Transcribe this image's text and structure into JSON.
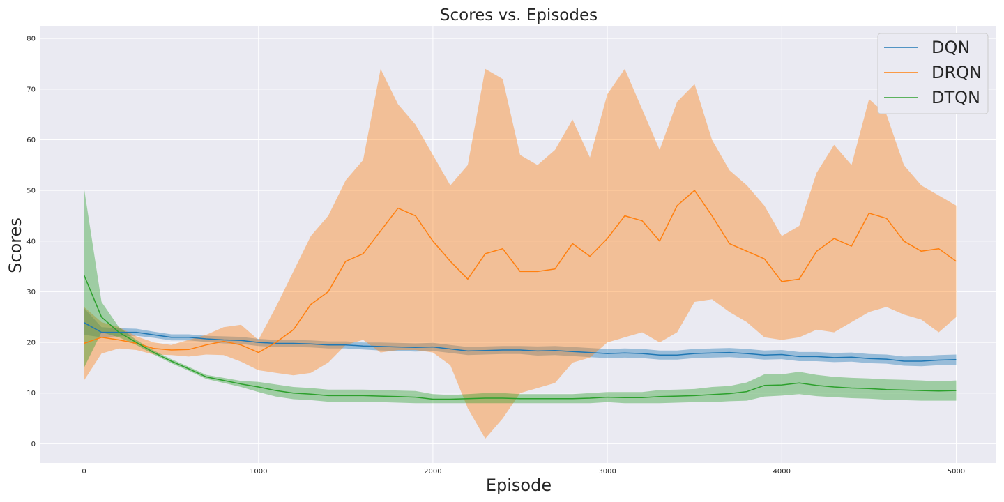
{
  "chart_data": {
    "type": "line",
    "title": "Scores vs. Episodes",
    "xlabel": "Episode",
    "ylabel": "Scores",
    "xlim": [
      -250,
      5230
    ],
    "ylim": [
      -3.8,
      82.5
    ],
    "xticks": [
      0,
      1000,
      2000,
      3000,
      4000,
      5000
    ],
    "yticks": [
      0,
      10,
      20,
      30,
      40,
      50,
      60,
      70,
      80
    ],
    "grid": true,
    "legend_position": "top-right",
    "x": [
      0,
      100,
      200,
      300,
      400,
      500,
      600,
      700,
      800,
      900,
      1000,
      1100,
      1200,
      1300,
      1400,
      1500,
      1600,
      1700,
      1800,
      1900,
      2000,
      2100,
      2200,
      2300,
      2400,
      2500,
      2600,
      2700,
      2800,
      2900,
      3000,
      3100,
      3200,
      3300,
      3400,
      3500,
      3600,
      3700,
      3800,
      3900,
      4000,
      4100,
      4200,
      4300,
      4400,
      4500,
      4600,
      4700,
      4800,
      4900,
      5000
    ],
    "series": [
      {
        "name": "DQN",
        "color": "#1f77b4",
        "values": [
          23.9,
          22.0,
          22.0,
          22.0,
          21.5,
          21.0,
          21.0,
          20.7,
          20.5,
          20.4,
          20.0,
          19.8,
          19.8,
          19.7,
          19.5,
          19.5,
          19.3,
          19.2,
          19.1,
          19.0,
          19.1,
          18.7,
          18.3,
          18.4,
          18.5,
          18.5,
          18.3,
          18.4,
          18.2,
          18.0,
          17.8,
          17.9,
          17.8,
          17.5,
          17.5,
          17.8,
          17.9,
          18.0,
          17.8,
          17.5,
          17.6,
          17.2,
          17.2,
          17.0,
          17.1,
          16.8,
          16.7,
          16.3,
          16.3,
          16.5,
          16.6
        ],
        "lower": [
          21.5,
          21.0,
          21.2,
          21.3,
          20.9,
          20.4,
          20.4,
          20.1,
          19.8,
          19.7,
          19.3,
          19.1,
          19.1,
          19.0,
          18.8,
          18.8,
          18.6,
          18.4,
          18.3,
          18.2,
          18.3,
          17.9,
          17.5,
          17.6,
          17.7,
          17.7,
          17.4,
          17.5,
          17.3,
          17.1,
          16.9,
          17.0,
          16.9,
          16.6,
          16.6,
          16.9,
          17.0,
          17.1,
          16.9,
          16.6,
          16.7,
          16.3,
          16.3,
          16.1,
          16.2,
          15.9,
          15.8,
          15.4,
          15.3,
          15.5,
          15.6
        ],
        "upper": [
          26.8,
          23.0,
          22.8,
          22.7,
          22.1,
          21.6,
          21.6,
          21.3,
          21.2,
          21.1,
          20.7,
          20.5,
          20.5,
          20.4,
          20.2,
          20.2,
          20.0,
          20.0,
          19.9,
          19.8,
          19.9,
          19.5,
          19.1,
          19.2,
          19.3,
          19.3,
          19.2,
          19.3,
          19.1,
          18.9,
          18.7,
          18.8,
          18.7,
          18.4,
          18.4,
          18.7,
          18.8,
          18.9,
          18.7,
          18.4,
          18.5,
          18.1,
          18.1,
          17.9,
          18.0,
          17.7,
          17.6,
          17.2,
          17.3,
          17.5,
          17.6
        ]
      },
      {
        "name": "DRQN",
        "color": "#ff7f0e",
        "values": [
          19.8,
          21.0,
          20.5,
          19.8,
          18.8,
          18.5,
          18.6,
          19.5,
          20.2,
          19.5,
          18.0,
          20.0,
          22.5,
          27.5,
          30.0,
          36.0,
          37.5,
          42.0,
          46.5,
          45.0,
          40.0,
          36.0,
          32.5,
          37.5,
          38.5,
          34.0,
          34.0,
          34.5,
          39.5,
          37.0,
          40.5,
          45.0,
          44.0,
          40.0,
          47.0,
          50.0,
          45.0,
          39.5,
          38.0,
          36.5,
          32.0,
          32.5,
          38.0,
          40.5,
          39.0,
          45.5,
          44.5,
          40.0,
          38.0,
          38.5,
          36.0
        ],
        "lower": [
          12.5,
          17.8,
          18.8,
          18.5,
          17.6,
          17.5,
          17.2,
          17.6,
          17.5,
          16.2,
          14.5,
          14.0,
          13.5,
          14.0,
          16.0,
          19.5,
          20.5,
          18.0,
          18.5,
          18.5,
          18.0,
          15.5,
          7.0,
          1.0,
          5.0,
          10.0,
          11.0,
          12.0,
          16.0,
          17.0,
          20.0,
          21.0,
          22.0,
          20.0,
          22.0,
          28.0,
          28.5,
          26.0,
          24.0,
          21.0,
          20.5,
          21.0,
          22.5,
          22.0,
          24.0,
          26.0,
          27.0,
          25.5,
          24.5,
          22.0,
          25.0
        ],
        "upper": [
          27.0,
          24.0,
          23.0,
          21.2,
          20.0,
          19.5,
          20.5,
          21.5,
          23.0,
          23.5,
          20.5,
          27.0,
          34.0,
          41.0,
          45.0,
          52.0,
          56.0,
          74.0,
          67.0,
          63.0,
          57.0,
          51.0,
          55.0,
          74.0,
          72.0,
          57.0,
          55.0,
          58.0,
          64.0,
          56.5,
          69.0,
          74.0,
          66.0,
          58.0,
          67.5,
          71.0,
          60.0,
          54.0,
          51.0,
          47.0,
          41.0,
          43.0,
          53.5,
          59.0,
          55.0,
          68.0,
          65.0,
          55.0,
          51.0,
          49.0,
          47.0
        ]
      },
      {
        "name": "DTQN",
        "color": "#2ca02c",
        "values": [
          33.3,
          25.0,
          22.0,
          20.0,
          18.0,
          16.3,
          14.8,
          13.2,
          12.5,
          11.8,
          11.2,
          10.5,
          10.0,
          9.8,
          9.5,
          9.5,
          9.5,
          9.4,
          9.3,
          9.2,
          8.8,
          8.8,
          8.9,
          9.0,
          9.0,
          8.9,
          8.9,
          8.9,
          8.9,
          9.0,
          9.2,
          9.1,
          9.1,
          9.3,
          9.4,
          9.5,
          9.7,
          9.9,
          10.3,
          11.5,
          11.6,
          12.0,
          11.5,
          11.2,
          11.0,
          10.9,
          10.7,
          10.6,
          10.5,
          10.4,
          10.5
        ],
        "lower": [
          15.0,
          22.0,
          21.0,
          19.5,
          17.6,
          15.9,
          14.4,
          12.8,
          12.0,
          11.2,
          10.2,
          9.3,
          8.8,
          8.6,
          8.3,
          8.3,
          8.3,
          8.2,
          8.1,
          8.0,
          8.0,
          8.0,
          8.0,
          8.0,
          8.0,
          8.0,
          8.0,
          8.0,
          8.0,
          8.0,
          8.2,
          8.0,
          8.0,
          8.0,
          8.1,
          8.2,
          8.2,
          8.4,
          8.5,
          9.3,
          9.5,
          9.8,
          9.4,
          9.2,
          9.0,
          8.9,
          8.7,
          8.6,
          8.5,
          8.5,
          8.5
        ],
        "upper": [
          50.5,
          28.0,
          23.0,
          20.5,
          18.4,
          16.7,
          15.2,
          13.6,
          13.0,
          12.4,
          12.2,
          11.7,
          11.2,
          11.0,
          10.7,
          10.7,
          10.7,
          10.6,
          10.5,
          10.4,
          9.8,
          9.6,
          9.8,
          10.0,
          10.0,
          9.8,
          9.8,
          9.8,
          9.8,
          10.0,
          10.2,
          10.2,
          10.2,
          10.6,
          10.7,
          10.8,
          11.2,
          11.4,
          12.1,
          13.7,
          13.7,
          14.2,
          13.6,
          13.2,
          13.0,
          12.9,
          12.7,
          12.6,
          12.5,
          12.3,
          12.5
        ]
      }
    ]
  }
}
